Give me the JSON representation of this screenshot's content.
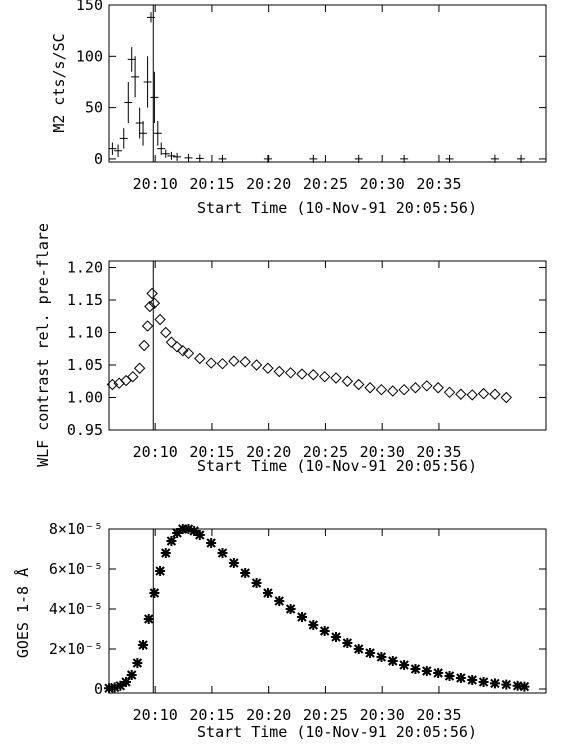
{
  "chart_data": [
    {
      "type": "scatter",
      "marker": "plus",
      "xlabel": "Start Time (10-Nov-91 20:05:56)",
      "ylabel": "M2 cts/s/SC",
      "x_ticks": [
        "20:10",
        "20:15",
        "20:20",
        "20:25",
        "20:30",
        "20:35"
      ],
      "y_ticks": [
        "0",
        "50",
        "100",
        "150"
      ],
      "x_units": "minutes after 20:05:56",
      "xlim": [
        0,
        38.5
      ],
      "ylim": [
        -3,
        150
      ],
      "vline_x": 3.9,
      "x": [
        0.3,
        0.8,
        1.3,
        1.7,
        2.0,
        2.3,
        2.7,
        3.0,
        3.4,
        3.7,
        4.0,
        4.3,
        4.6,
        5.0,
        5.5,
        6.0,
        7.0,
        8.0,
        10.0,
        14.0,
        18.0,
        22.0,
        26.0,
        30.0,
        34.0,
        36.3
      ],
      "y": [
        10,
        8,
        20,
        55,
        97,
        80,
        35,
        25,
        75,
        138,
        60,
        25,
        10,
        5,
        3,
        2,
        1,
        0.5,
        0,
        0,
        0,
        0,
        0,
        0,
        0,
        0
      ],
      "err": [
        6,
        6,
        10,
        20,
        12,
        20,
        15,
        12,
        25,
        5,
        25,
        12,
        6,
        3,
        2,
        1,
        0,
        0,
        0,
        0,
        0,
        0,
        0,
        0,
        0,
        0
      ]
    },
    {
      "type": "scatter",
      "marker": "diamond",
      "xlabel": "Start Time (10-Nov-91 20:05:56)",
      "ylabel": "WLF contrast rel. pre-flare",
      "x_ticks": [
        "20:10",
        "20:15",
        "20:20",
        "20:25",
        "20:30",
        "20:35"
      ],
      "y_ticks": [
        "0.95",
        "1.00",
        "1.05",
        "1.10",
        "1.15",
        "1.20"
      ],
      "x_units": "minutes after 20:05:56",
      "xlim": [
        0,
        38.5
      ],
      "ylim": [
        0.95,
        1.21
      ],
      "vline_x": 3.9,
      "x": [
        0.3,
        0.9,
        1.5,
        2.1,
        2.7,
        3.1,
        3.4,
        3.6,
        3.8,
        4.0,
        4.5,
        5.0,
        5.5,
        6.0,
        6.5,
        7.0,
        8.0,
        9.0,
        10.0,
        11.0,
        12.0,
        13.0,
        14.0,
        15.0,
        16.0,
        17.0,
        18.0,
        19.0,
        20.0,
        21.0,
        22.0,
        23.0,
        24.0,
        25.0,
        26.0,
        27.0,
        28.0,
        29.0,
        30.0,
        31.0,
        32.0,
        33.0,
        34.0,
        35.0
      ],
      "y": [
        1.02,
        1.022,
        1.026,
        1.032,
        1.045,
        1.08,
        1.11,
        1.14,
        1.16,
        1.145,
        1.12,
        1.1,
        1.085,
        1.078,
        1.072,
        1.068,
        1.06,
        1.053,
        1.052,
        1.056,
        1.055,
        1.05,
        1.045,
        1.04,
        1.038,
        1.036,
        1.035,
        1.032,
        1.03,
        1.025,
        1.02,
        1.015,
        1.012,
        1.01,
        1.012,
        1.015,
        1.018,
        1.015,
        1.008,
        1.005,
        1.004,
        1.006,
        1.005,
        1.0
      ]
    },
    {
      "type": "scatter",
      "marker": "asterisk",
      "xlabel": "Start Time (10-Nov-91 20:05:56)",
      "ylabel": "GOES 1-8 Å",
      "x_ticks": [
        "20:10",
        "20:15",
        "20:20",
        "20:25",
        "20:30",
        "20:35"
      ],
      "y_ticks": [
        "0",
        "2×10⁻⁵",
        "4×10⁻⁵",
        "6×10⁻⁵",
        "8×10⁻⁵"
      ],
      "x_units": "minutes after 20:05:56",
      "xlim": [
        0,
        38.5
      ],
      "ylim": [
        -2e-06,
        8e-05
      ],
      "vline_x": 3.9,
      "x": [
        0.0,
        0.5,
        1.0,
        1.5,
        2.0,
        2.5,
        3.0,
        3.5,
        4.0,
        4.5,
        5.0,
        5.5,
        6.0,
        6.5,
        7.0,
        7.5,
        8.0,
        9.0,
        10.0,
        11.0,
        12.0,
        13.0,
        14.0,
        15.0,
        16.0,
        17.0,
        18.0,
        19.0,
        20.0,
        21.0,
        22.0,
        23.0,
        24.0,
        25.0,
        26.0,
        27.0,
        28.0,
        29.0,
        30.0,
        31.0,
        32.0,
        33.0,
        34.0,
        35.0,
        36.0,
        36.6
      ],
      "y": [
        4e-07,
        8e-07,
        1.6e-06,
        3.5e-06,
        7e-06,
        1.3e-05,
        2.2e-05,
        3.5e-05,
        4.8e-05,
        5.9e-05,
        6.8e-05,
        7.4e-05,
        7.8e-05,
        8e-05,
        8e-05,
        7.9e-05,
        7.7e-05,
        7.3e-05,
        6.8e-05,
        6.3e-05,
        5.8e-05,
        5.3e-05,
        4.8e-05,
        4.4e-05,
        4e-05,
        3.6e-05,
        3.2e-05,
        2.9e-05,
        2.6e-05,
        2.3e-05,
        2e-05,
        1.8e-05,
        1.6e-05,
        1.4e-05,
        1.2e-05,
        1e-05,
        9e-06,
        8e-06,
        6.5e-06,
        5.5e-06,
        4.5e-06,
        3.5e-06,
        2.8e-06,
        2.2e-06,
        1.6e-06,
        1.2e-06
      ]
    }
  ]
}
